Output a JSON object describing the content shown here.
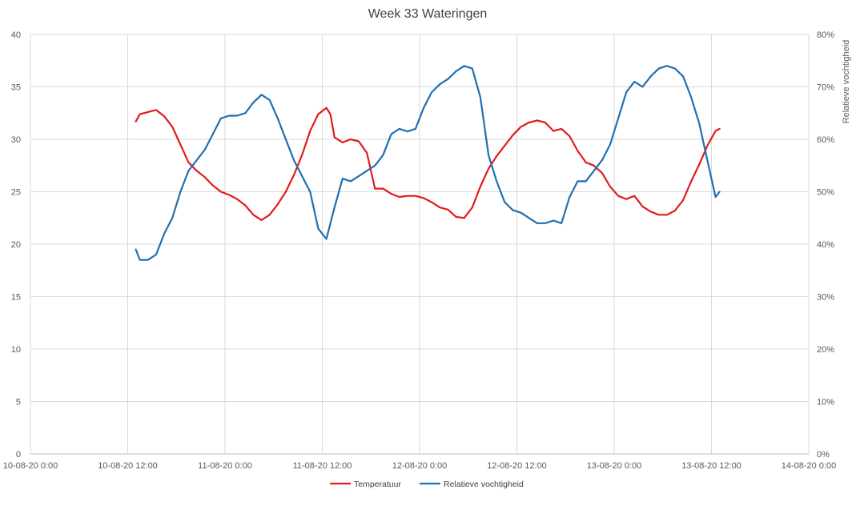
{
  "chart_data": {
    "type": "line",
    "title": "Week 33 Wateringen",
    "xlabel": "",
    "ylabel": "",
    "y2label": "Relatieve vochtigheid",
    "xlim": [
      "10-08-20 0:00",
      "14-08-20 0:00"
    ],
    "ylim": [
      0,
      40
    ],
    "y2lim": [
      0,
      0.8
    ],
    "x_ticks": [
      "10-08-20 0:00",
      "10-08-20 12:00",
      "11-08-20 0:00",
      "11-08-20 12:00",
      "12-08-20 0:00",
      "12-08-20 12:00",
      "13-08-20 0:00",
      "13-08-20 12:00",
      "14-08-20 0:00"
    ],
    "y_ticks": [
      "0",
      "5",
      "10",
      "15",
      "20",
      "25",
      "30",
      "35",
      "40"
    ],
    "y2_ticks": [
      "0%",
      "10%",
      "20%",
      "30%",
      "40%",
      "50%",
      "60%",
      "70%",
      "80%"
    ],
    "grid": true,
    "legend_position": "bottom",
    "series": [
      {
        "name": "Temperatuur",
        "axis": "left",
        "color": "#e31a1c",
        "points": [
          [
            "10-08-20 13:00",
            31.7
          ],
          [
            "10-08-20 13:30",
            32.4
          ],
          [
            "10-08-20 14:30",
            32.6
          ],
          [
            "10-08-20 15:30",
            32.8
          ],
          [
            "10-08-20 16:30",
            32.2
          ],
          [
            "10-08-20 17:30",
            31.2
          ],
          [
            "10-08-20 18:30",
            29.5
          ],
          [
            "10-08-20 19:30",
            27.8
          ],
          [
            "10-08-20 20:30",
            27.0
          ],
          [
            "10-08-20 21:30",
            26.4
          ],
          [
            "10-08-20 22:30",
            25.6
          ],
          [
            "10-08-20 23:30",
            25.0
          ],
          [
            "11-08-20 0:30",
            24.7
          ],
          [
            "11-08-20 1:30",
            24.3
          ],
          [
            "11-08-20 2:30",
            23.7
          ],
          [
            "11-08-20 3:30",
            22.8
          ],
          [
            "11-08-20 4:30",
            22.3
          ],
          [
            "11-08-20 5:30",
            22.8
          ],
          [
            "11-08-20 6:30",
            23.8
          ],
          [
            "11-08-20 7:30",
            25.0
          ],
          [
            "11-08-20 8:30",
            26.6
          ],
          [
            "11-08-20 9:30",
            28.5
          ],
          [
            "11-08-20 10:30",
            30.8
          ],
          [
            "11-08-20 11:30",
            32.4
          ],
          [
            "11-08-20 12:30",
            33.0
          ],
          [
            "11-08-20 13:00",
            32.4
          ],
          [
            "11-08-20 13:30",
            30.2
          ],
          [
            "11-08-20 14:30",
            29.7
          ],
          [
            "11-08-20 15:30",
            30.0
          ],
          [
            "11-08-20 16:30",
            29.8
          ],
          [
            "11-08-20 17:30",
            28.7
          ],
          [
            "11-08-20 18:30",
            25.3
          ],
          [
            "11-08-20 19:30",
            25.3
          ],
          [
            "11-08-20 20:30",
            24.8
          ],
          [
            "11-08-20 21:30",
            24.5
          ],
          [
            "11-08-20 22:30",
            24.6
          ],
          [
            "11-08-20 23:30",
            24.6
          ],
          [
            "12-08-20 0:30",
            24.4
          ],
          [
            "12-08-20 1:30",
            24.0
          ],
          [
            "12-08-20 2:30",
            23.5
          ],
          [
            "12-08-20 3:30",
            23.3
          ],
          [
            "12-08-20 4:30",
            22.6
          ],
          [
            "12-08-20 5:30",
            22.5
          ],
          [
            "12-08-20 6:30",
            23.5
          ],
          [
            "12-08-20 7:30",
            25.5
          ],
          [
            "12-08-20 8:30",
            27.2
          ],
          [
            "12-08-20 9:30",
            28.4
          ],
          [
            "12-08-20 10:30",
            29.4
          ],
          [
            "12-08-20 11:30",
            30.4
          ],
          [
            "12-08-20 12:30",
            31.2
          ],
          [
            "12-08-20 13:30",
            31.6
          ],
          [
            "12-08-20 14:30",
            31.8
          ],
          [
            "12-08-20 15:30",
            31.6
          ],
          [
            "12-08-20 16:30",
            30.8
          ],
          [
            "12-08-20 17:30",
            31.0
          ],
          [
            "12-08-20 18:30",
            30.3
          ],
          [
            "12-08-20 19:30",
            28.9
          ],
          [
            "12-08-20 20:30",
            27.8
          ],
          [
            "12-08-20 21:30",
            27.5
          ],
          [
            "12-08-20 22:30",
            26.8
          ],
          [
            "12-08-20 23:30",
            25.5
          ],
          [
            "13-08-20 0:30",
            24.6
          ],
          [
            "13-08-20 1:30",
            24.3
          ],
          [
            "13-08-20 2:30",
            24.6
          ],
          [
            "13-08-20 3:30",
            23.6
          ],
          [
            "13-08-20 4:30",
            23.1
          ],
          [
            "13-08-20 5:30",
            22.8
          ],
          [
            "13-08-20 6:30",
            22.8
          ],
          [
            "13-08-20 7:30",
            23.2
          ],
          [
            "13-08-20 8:30",
            24.2
          ],
          [
            "13-08-20 9:30",
            26.0
          ],
          [
            "13-08-20 10:30",
            27.6
          ],
          [
            "13-08-20 11:30",
            29.4
          ],
          [
            "13-08-20 12:30",
            30.8
          ],
          [
            "13-08-20 13:00",
            31.0
          ]
        ]
      },
      {
        "name": "Relatieve vochtigheid",
        "axis": "right",
        "color": "#1f6fb2",
        "points": [
          [
            "10-08-20 13:00",
            0.39
          ],
          [
            "10-08-20 13:30",
            0.37
          ],
          [
            "10-08-20 14:30",
            0.37
          ],
          [
            "10-08-20 15:30",
            0.38
          ],
          [
            "10-08-20 16:30",
            0.42
          ],
          [
            "10-08-20 17:30",
            0.45
          ],
          [
            "10-08-20 18:30",
            0.5
          ],
          [
            "10-08-20 19:30",
            0.54
          ],
          [
            "10-08-20 20:30",
            0.56
          ],
          [
            "10-08-20 21:30",
            0.58
          ],
          [
            "10-08-20 22:30",
            0.61
          ],
          [
            "10-08-20 23:30",
            0.64
          ],
          [
            "11-08-20 0:30",
            0.645
          ],
          [
            "11-08-20 1:30",
            0.645
          ],
          [
            "11-08-20 2:30",
            0.65
          ],
          [
            "11-08-20 3:30",
            0.67
          ],
          [
            "11-08-20 4:30",
            0.685
          ],
          [
            "11-08-20 5:30",
            0.675
          ],
          [
            "11-08-20 6:30",
            0.64
          ],
          [
            "11-08-20 7:30",
            0.6
          ],
          [
            "11-08-20 8:30",
            0.56
          ],
          [
            "11-08-20 9:30",
            0.53
          ],
          [
            "11-08-20 10:30",
            0.5
          ],
          [
            "11-08-20 11:30",
            0.43
          ],
          [
            "11-08-20 12:30",
            0.41
          ],
          [
            "11-08-20 13:30",
            0.47
          ],
          [
            "11-08-20 14:30",
            0.525
          ],
          [
            "11-08-20 15:30",
            0.52
          ],
          [
            "11-08-20 16:30",
            0.53
          ],
          [
            "11-08-20 17:30",
            0.54
          ],
          [
            "11-08-20 18:30",
            0.55
          ],
          [
            "11-08-20 19:30",
            0.57
          ],
          [
            "11-08-20 20:30",
            0.61
          ],
          [
            "11-08-20 21:30",
            0.62
          ],
          [
            "11-08-20 22:30",
            0.615
          ],
          [
            "11-08-20 23:30",
            0.62
          ],
          [
            "12-08-20 0:30",
            0.66
          ],
          [
            "12-08-20 1:30",
            0.69
          ],
          [
            "12-08-20 2:30",
            0.705
          ],
          [
            "12-08-20 3:30",
            0.715
          ],
          [
            "12-08-20 4:30",
            0.73
          ],
          [
            "12-08-20 5:30",
            0.74
          ],
          [
            "12-08-20 6:30",
            0.735
          ],
          [
            "12-08-20 7:30",
            0.68
          ],
          [
            "12-08-20 8:30",
            0.57
          ],
          [
            "12-08-20 9:30",
            0.52
          ],
          [
            "12-08-20 10:30",
            0.48
          ],
          [
            "12-08-20 11:30",
            0.465
          ],
          [
            "12-08-20 12:30",
            0.46
          ],
          [
            "12-08-20 13:30",
            0.45
          ],
          [
            "12-08-20 14:30",
            0.44
          ],
          [
            "12-08-20 15:30",
            0.44
          ],
          [
            "12-08-20 16:30",
            0.445
          ],
          [
            "12-08-20 17:30",
            0.44
          ],
          [
            "12-08-20 18:30",
            0.49
          ],
          [
            "12-08-20 19:30",
            0.52
          ],
          [
            "12-08-20 20:30",
            0.52
          ],
          [
            "12-08-20 21:30",
            0.54
          ],
          [
            "12-08-20 22:30",
            0.56
          ],
          [
            "12-08-20 23:30",
            0.59
          ],
          [
            "13-08-20 0:30",
            0.64
          ],
          [
            "13-08-20 1:30",
            0.69
          ],
          [
            "13-08-20 2:30",
            0.71
          ],
          [
            "13-08-20 3:30",
            0.7
          ],
          [
            "13-08-20 4:30",
            0.72
          ],
          [
            "13-08-20 5:30",
            0.735
          ],
          [
            "13-08-20 6:30",
            0.74
          ],
          [
            "13-08-20 7:30",
            0.735
          ],
          [
            "13-08-20 8:30",
            0.72
          ],
          [
            "13-08-20 9:30",
            0.68
          ],
          [
            "13-08-20 10:30",
            0.63
          ],
          [
            "13-08-20 11:30",
            0.56
          ],
          [
            "13-08-20 12:30",
            0.49
          ],
          [
            "13-08-20 13:00",
            0.5
          ]
        ]
      }
    ]
  }
}
